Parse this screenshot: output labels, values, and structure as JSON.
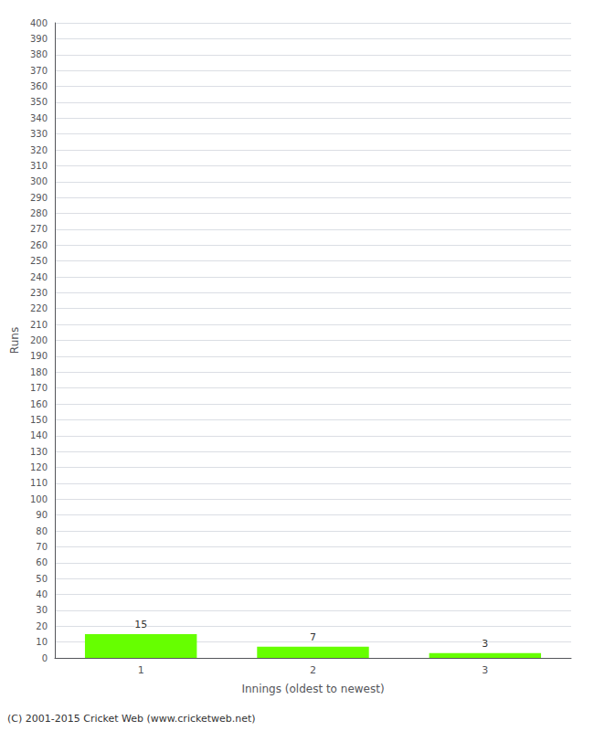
{
  "chart_data": {
    "type": "bar",
    "xlabel": "Innings (oldest to newest)",
    "ylabel": "Runs",
    "categories": [
      "1",
      "2",
      "3"
    ],
    "values": [
      15,
      7,
      3
    ],
    "color": "#66ff00",
    "data_labels": true,
    "ylim": [
      0,
      400
    ],
    "yticks": [
      0,
      10,
      20,
      30,
      40,
      50,
      60,
      70,
      80,
      90,
      100,
      110,
      120,
      130,
      140,
      150,
      160,
      170,
      180,
      190,
      200,
      210,
      220,
      230,
      240,
      250,
      260,
      270,
      280,
      290,
      300,
      310,
      320,
      330,
      340,
      350,
      360,
      370,
      380,
      390,
      400
    ],
    "grid": true,
    "footer": "(C) 2001-2015 Cricket Web (www.cricketweb.net)"
  }
}
